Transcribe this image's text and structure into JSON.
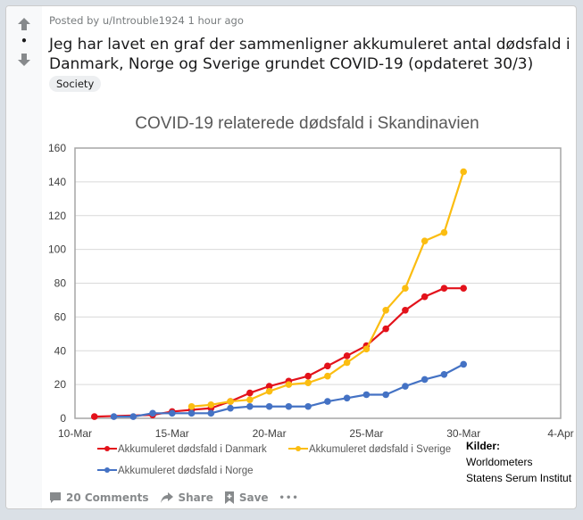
{
  "post": {
    "posted_by_prefix": "Posted by",
    "username": "u/Introuble1924",
    "time_ago": "1 hour ago",
    "score": "•",
    "title": "Jeg har lavet en graf der sammenligner akkumuleret antal dødsfald i Danmark, Norge og Sverige grundet COVID-19 (opdateret 30/3)",
    "flair": "Society"
  },
  "actions": {
    "comments_label": "20 Comments",
    "share_label": "Share",
    "save_label": "Save",
    "more_label": "•••"
  },
  "icons": {
    "upvote": "arrow-up-icon",
    "downvote": "arrow-down-icon",
    "comments": "comment-icon",
    "share": "share-arrow-icon",
    "save": "bookmark-icon",
    "more": "more-dots-icon"
  },
  "chart_data": {
    "type": "line",
    "title": "COVID-19 relaterede dødsfald i Skandinavien",
    "xlabel": "",
    "ylabel": "",
    "x_tick_labels": [
      "10-Mar",
      "15-Mar",
      "20-Mar",
      "25-Mar",
      "30-Mar",
      "4-Apr"
    ],
    "x_range_days": [
      10,
      35
    ],
    "x_tick_days": [
      10,
      15,
      20,
      25,
      30,
      35
    ],
    "y_ticks": [
      0,
      20,
      40,
      60,
      80,
      100,
      120,
      140,
      160
    ],
    "ylim": [
      0,
      160
    ],
    "grid": "horizontal",
    "legend_position": "bottom",
    "series": [
      {
        "name": "Akkumuleret dødsfald i Danmark",
        "color": "#e3121b",
        "days": [
          11,
          14,
          15,
          16,
          17,
          18,
          19,
          20,
          21,
          22,
          23,
          24,
          25,
          26,
          27,
          28,
          29,
          30
        ],
        "values": [
          1,
          2,
          4,
          5,
          6,
          10,
          15,
          19,
          22,
          25,
          31,
          37,
          43,
          53,
          64,
          72,
          77,
          77
        ]
      },
      {
        "name": "Akkumuleret dødsfald i Sverige",
        "color": "#fbbd11",
        "days": [
          16,
          17,
          18,
          19,
          20,
          21,
          22,
          23,
          24,
          25,
          26,
          27,
          28,
          29,
          30
        ],
        "values": [
          7,
          8,
          10,
          11,
          16,
          20,
          21,
          25,
          33,
          41,
          64,
          77,
          105,
          110,
          146
        ]
      },
      {
        "name": "Akkumuleret dødsfald i Norge",
        "color": "#4472c4",
        "days": [
          12,
          13,
          14,
          15,
          16,
          17,
          18,
          19,
          20,
          21,
          22,
          23,
          24,
          25,
          26,
          27,
          28,
          29,
          30
        ],
        "values": [
          1,
          1,
          3,
          3,
          3,
          3,
          6,
          7,
          7,
          7,
          7,
          10,
          12,
          14,
          14,
          19,
          23,
          26,
          32
        ]
      }
    ],
    "annotation": {
      "heading": "Kilder:",
      "lines": [
        "Worldometers",
        "Statens Serum Institut"
      ]
    }
  }
}
